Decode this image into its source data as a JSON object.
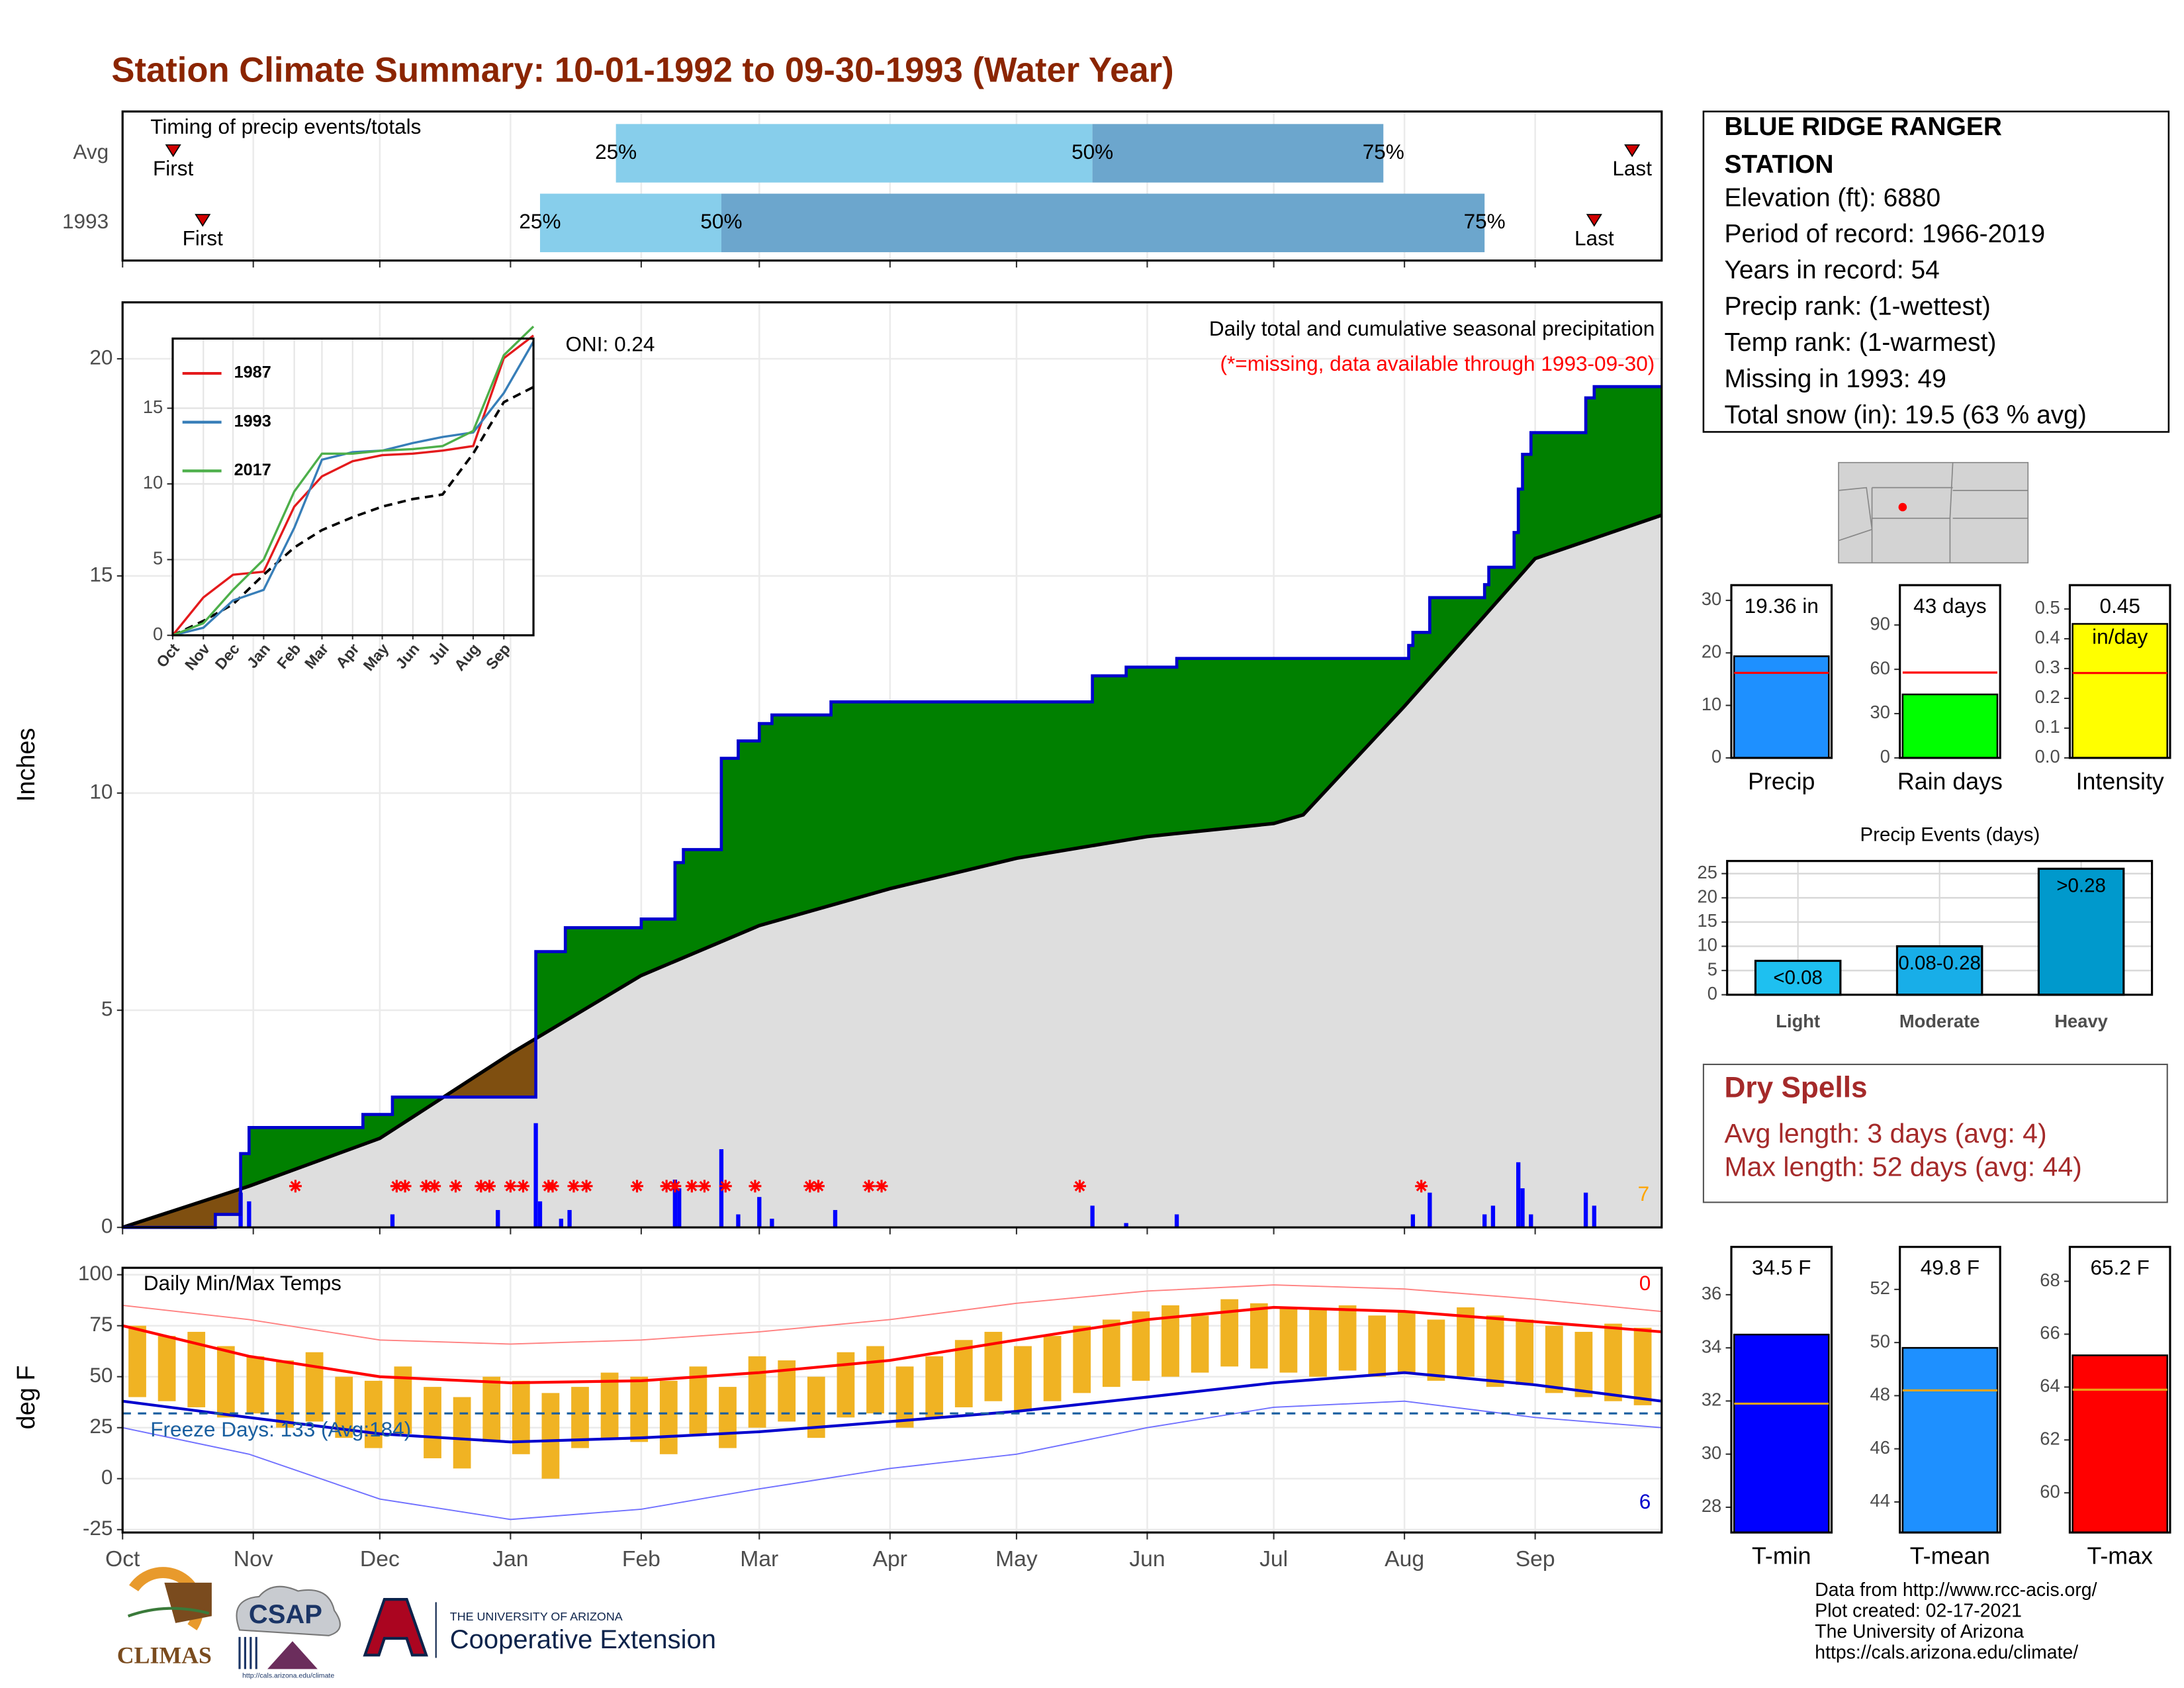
{
  "title": "Station Climate Summary: 10-01-1992 to 09-30-1993 (Water Year)",
  "station_info": {
    "name": [
      "BLUE RIDGE RANGER",
      "STATION"
    ],
    "lines": [
      "Elevation (ft): 6880",
      "Period of record: 1966-2019",
      "Years in record: 54",
      "Precip rank:  (1-wettest)",
      "Temp rank:  (1-warmest)",
      "Missing in 1993: 49",
      "Total snow (in): 19.5 (63 % avg)"
    ]
  },
  "dry_spells": {
    "title": "Dry Spells",
    "lines": [
      "Avg length: 3 days (avg: 4)",
      "Max length: 52 days (avg: 44)"
    ]
  },
  "footer": [
    "Data from http://www.rcc-acis.org/",
    "Plot created: 02-17-2021",
    "The University of Arizona",
    "https://cals.arizona.edu/climate/"
  ],
  "logos": {
    "climas": "CLIMAS",
    "csap": "CSAP",
    "csap_url": "http://cals.arizona.edu/climate",
    "university": "THE UNIVERSITY OF ARIZONA",
    "extension": "Cooperative Extension"
  },
  "chart_data": [
    {
      "type": "timing",
      "title": "Timing of precip events/totals",
      "categories": [
        "Avg",
        "1993"
      ],
      "first": [
        12,
        19
      ],
      "p25": [
        117,
        99
      ],
      "p50": [
        230,
        142
      ],
      "p75": [
        299,
        323
      ],
      "last": [
        358,
        349
      ],
      "first_label": "First",
      "last_label": "Last",
      "quantile_labels": [
        "25%",
        "50%",
        "75%"
      ],
      "colors": [
        "#87ceeb",
        "#6ca6cd"
      ]
    },
    {
      "type": "cumulative",
      "title": "Daily total and cumulative seasonal precipitation",
      "subtitle": "(*=missing, data available through 1993-09-30)",
      "annotation": "ONI: 0.24",
      "corner_count": 7,
      "ylabel": "Inches",
      "ylim": [
        0,
        21.3
      ],
      "yticks": [
        0,
        5,
        10,
        15,
        20
      ],
      "grid": true,
      "cumulative": {
        "x": [
          0,
          22,
          28,
          30,
          57,
          64,
          98,
          105,
          123,
          131,
          133,
          142,
          146,
          151,
          154,
          168,
          230,
          238,
          250,
          305,
          306,
          310,
          323,
          324,
          330,
          331,
          332,
          334,
          347,
          349,
          365
        ],
        "values": [
          0,
          0.3,
          1.7,
          2.3,
          2.6,
          3.0,
          6.35,
          6.9,
          7.1,
          8.4,
          8.7,
          10.8,
          11.2,
          11.6,
          11.8,
          12.1,
          12.7,
          12.9,
          13.1,
          13.4,
          13.7,
          14.5,
          14.8,
          15.2,
          16.0,
          17.0,
          17.8,
          18.3,
          19.1,
          19.36,
          19.36
        ],
        "color": "#0000cd"
      },
      "average": {
        "x": [
          0,
          30,
          61,
          92,
          123,
          151,
          182,
          212,
          243,
          273,
          280,
          304,
          335,
          365
        ],
        "values": [
          0,
          0.95,
          2.05,
          4.0,
          5.8,
          6.95,
          7.8,
          8.5,
          9.0,
          9.3,
          9.5,
          12.0,
          15.4,
          16.4
        ]
      },
      "daily": {
        "x": [
          28,
          30,
          64,
          89,
          98,
          99,
          104,
          106,
          131,
          132,
          142,
          146,
          151,
          154,
          169,
          230,
          238,
          250,
          306,
          310,
          323,
          325,
          331,
          332,
          334,
          347,
          349
        ],
        "values": [
          0.8,
          0.6,
          0.3,
          0.4,
          2.4,
          0.6,
          0.2,
          0.4,
          1.1,
          0.9,
          1.8,
          0.3,
          0.7,
          0.2,
          0.4,
          0.5,
          0.1,
          0.3,
          0.3,
          0.8,
          0.3,
          0.5,
          1.5,
          0.9,
          0.3,
          0.8,
          0.5
        ],
        "color": "#0000ff"
      },
      "missing_days": [
        41,
        65,
        67,
        72,
        74,
        79,
        85,
        87,
        92,
        95,
        101,
        102,
        107,
        110,
        122,
        129,
        131,
        135,
        138,
        143,
        150,
        163,
        165,
        177,
        180,
        227,
        308
      ],
      "above_color": "#008000",
      "below_color": "#7f4f10",
      "normal_color": "#dedede"
    },
    {
      "type": "line",
      "ylim": [
        0,
        19.6
      ],
      "yticks": [
        0,
        5,
        10,
        15
      ],
      "x": [
        0,
        31,
        61,
        92,
        123,
        151,
        182,
        212,
        243,
        273,
        304,
        335,
        365
      ],
      "series": [
        {
          "name": "1987",
          "color": "#e41a1c",
          "values": [
            0,
            2.5,
            4,
            4.2,
            8.5,
            10.5,
            11.5,
            11.9,
            12,
            12.2,
            12.5,
            18.3,
            19.8
          ]
        },
        {
          "name": "1993",
          "color": "#377eb8",
          "values": [
            0,
            0.5,
            2.3,
            3.0,
            7.1,
            11.6,
            12.1,
            12.2,
            12.7,
            13.1,
            13.4,
            16.0,
            19.4
          ]
        },
        {
          "name": "2017",
          "color": "#4daf4a",
          "values": [
            0,
            0.8,
            3,
            5,
            9.5,
            12,
            12,
            12.2,
            12.3,
            12.5,
            13.5,
            18.5,
            20.4
          ]
        }
      ],
      "average": [
        0,
        0.95,
        2.05,
        4.0,
        5.8,
        6.95,
        7.8,
        8.5,
        9.0,
        9.3,
        12.0,
        15.4,
        16.4
      ]
    },
    {
      "type": "temperature",
      "title": "Daily Min/Max Temps",
      "ylabel": "deg F",
      "ylim": [
        -26.4,
        103.4
      ],
      "yticks": [
        -25,
        0,
        25,
        50,
        75,
        100
      ],
      "xlim": [
        0,
        365
      ],
      "xticks": [
        {
          "value": 0,
          "label": "Oct"
        },
        {
          "value": 31,
          "label": "Nov"
        },
        {
          "value": 61,
          "label": "Dec"
        },
        {
          "value": 92,
          "label": "Jan"
        },
        {
          "value": 123,
          "label": "Feb"
        },
        {
          "value": 151,
          "label": "Mar"
        },
        {
          "value": 182,
          "label": "Apr"
        },
        {
          "value": 212,
          "label": "May"
        },
        {
          "value": 243,
          "label": "Jun"
        },
        {
          "value": 273,
          "label": "Jul"
        },
        {
          "value": 304,
          "label": "Aug"
        },
        {
          "value": 335,
          "label": "Sep"
        }
      ],
      "x": [
        3.5,
        10.5,
        17.5,
        24.5,
        31.5,
        38.5,
        45.5,
        52.5,
        59.5,
        66.5,
        73.5,
        80.5,
        87.5,
        94.5,
        101.5,
        108.5,
        115.5,
        122.5,
        129.5,
        136.5,
        143.5,
        150.5,
        157.5,
        164.5,
        171.5,
        178.5,
        185.5,
        192.5,
        199.5,
        206.5,
        213.5,
        220.5,
        227.5,
        234.5,
        241.5,
        248.5,
        255.5,
        262.5,
        269.5,
        276.5,
        283.5,
        290.5,
        297.5,
        304.5,
        311.5,
        318.5,
        325.5,
        332.5,
        339.5,
        346.5,
        353.5,
        360.5
      ],
      "tmax": [
        75,
        70,
        72,
        65,
        60,
        58,
        62,
        50,
        48,
        55,
        45,
        40,
        50,
        48,
        42,
        45,
        52,
        50,
        48,
        55,
        45,
        60,
        58,
        50,
        62,
        65,
        55,
        60,
        68,
        72,
        65,
        70,
        75,
        78,
        82,
        85,
        80,
        88,
        86,
        84,
        83,
        85,
        80,
        82,
        78,
        84,
        80,
        78,
        75,
        72,
        76,
        74
      ],
      "tmin": [
        40,
        38,
        35,
        30,
        32,
        25,
        28,
        20,
        15,
        22,
        10,
        5,
        18,
        12,
        0,
        15,
        20,
        18,
        12,
        22,
        15,
        25,
        28,
        20,
        30,
        32,
        25,
        30,
        35,
        38,
        33,
        38,
        42,
        45,
        48,
        50,
        52,
        55,
        54,
        52,
        50,
        53,
        50,
        52,
        48,
        50,
        45,
        46,
        42,
        40,
        38,
        36
      ],
      "bar_color": "#f0b323",
      "normals": {
        "x": [
          0,
          30,
          61,
          92,
          123,
          151,
          182,
          212,
          243,
          273,
          304,
          335,
          365
        ],
        "avg_max": [
          75,
          60,
          50,
          47,
          48,
          52,
          58,
          68,
          78,
          84,
          82,
          77,
          72
        ],
        "avg_min": [
          38,
          30,
          22,
          18,
          20,
          23,
          28,
          33,
          40,
          47,
          52,
          46,
          38
        ],
        "record_max": [
          85,
          78,
          68,
          66,
          68,
          72,
          78,
          86,
          92,
          95,
          93,
          88,
          82
        ],
        "record_min": [
          25,
          12,
          -10,
          -20,
          -15,
          -5,
          5,
          12,
          25,
          35,
          38,
          30,
          25
        ]
      },
      "freeze_line": 32,
      "freeze_text": "Freeze Days: 133 (Avg:184)",
      "record_high_count": 0,
      "record_low_count": 6
    },
    {
      "type": "summary_bar",
      "title": "Precip",
      "values": [
        19.36
      ],
      "value_labels": [
        "19.36 in"
      ],
      "average": 16.2,
      "ylim": [
        0,
        32.9
      ],
      "yticks": [
        0,
        10,
        20,
        30
      ],
      "color": "#1e90ff"
    },
    {
      "type": "summary_bar",
      "title": "Rain days",
      "values": [
        43
      ],
      "value_labels": [
        "43 days"
      ],
      "average": 57.8,
      "ylim": [
        0,
        117
      ],
      "yticks": [
        0,
        30,
        60,
        90
      ],
      "color": "#00ff00"
    },
    {
      "type": "summary_bar",
      "title": "Intensity",
      "values": [
        0.45
      ],
      "value_labels": [
        "0.45"
      ],
      "unit": "in/day",
      "average": 0.285,
      "ylim": [
        0,
        0.58
      ],
      "yticks": [
        {
          "value": 0,
          "label": "0.0"
        },
        0.1,
        0.2,
        0.3,
        0.4,
        0.5
      ],
      "color": "#ffff00"
    },
    {
      "type": "bar",
      "title": "Precip Events (days)",
      "categories": [
        "Light",
        "Moderate",
        "Heavy"
      ],
      "values": [
        7,
        10,
        26
      ],
      "ranges": [
        "<0.08",
        "0.08-0.28",
        ">0.28"
      ],
      "ylim": [
        0,
        27.6
      ],
      "yticks": [
        0,
        5,
        10,
        15,
        20,
        25
      ],
      "colors": [
        "#1ec0f0",
        "#18aee8",
        "#0099cc"
      ],
      "grid": true
    },
    {
      "type": "summary_bar",
      "title": "T-min",
      "values": [
        34.5
      ],
      "value_labels": [
        "34.5 F"
      ],
      "average": 31.9,
      "ylim": [
        27.05,
        37.8
      ],
      "yticks": [
        28,
        30,
        32,
        34,
        36
      ],
      "color": "#0000ff"
    },
    {
      "type": "summary_bar",
      "title": "T-mean",
      "values": [
        49.8
      ],
      "value_labels": [
        "49.8 F"
      ],
      "average": 48.2,
      "ylim": [
        42.85,
        53.6
      ],
      "yticks": [
        44,
        46,
        48,
        50,
        52
      ],
      "color": "#1e90ff"
    },
    {
      "type": "summary_bar",
      "title": "T-max",
      "values": [
        65.2
      ],
      "value_labels": [
        "65.2 F"
      ],
      "average": 63.9,
      "ylim": [
        58.5,
        69.3
      ],
      "yticks": [
        60,
        62,
        64,
        66,
        68
      ],
      "color": "#ff0000"
    }
  ]
}
